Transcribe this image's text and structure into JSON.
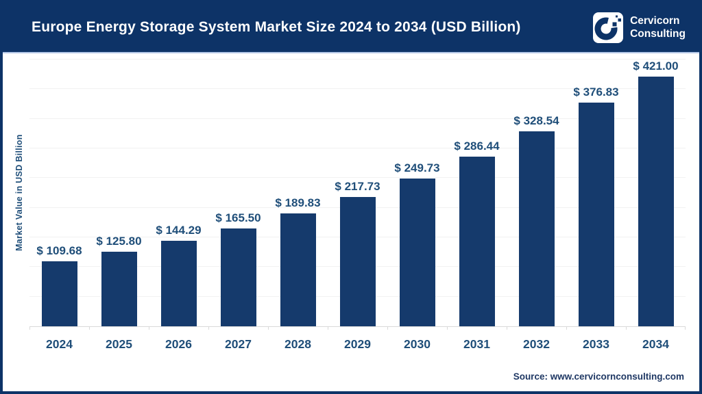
{
  "header": {
    "title": "Europe Energy Storage System Market Size 2024 to 2034 (USD Billion)",
    "brand_line1": "Cervicorn",
    "brand_line2": "Consulting"
  },
  "chart_data": {
    "type": "bar",
    "title": "Europe Energy Storage System Market Size 2024 to 2034 (USD Billion)",
    "categories": [
      "2024",
      "2025",
      "2026",
      "2027",
      "2028",
      "2029",
      "2030",
      "2031",
      "2032",
      "2033",
      "2034"
    ],
    "values": [
      109.68,
      125.8,
      144.29,
      165.5,
      189.83,
      217.73,
      249.73,
      286.44,
      328.54,
      376.83,
      421.0
    ],
    "value_labels": [
      "$ 109.68",
      "$ 125.80",
      "$ 144.29",
      "$ 165.50",
      "$ 189.83",
      "$ 217.73",
      "$ 249.73",
      "$ 286.44",
      "$ 328.54",
      "$ 376.83",
      "$ 421.00"
    ],
    "xlabel": "",
    "ylabel": "Market Value in USD Billion",
    "ylim": [
      0,
      450
    ],
    "grid_step": 50,
    "grid": true,
    "legend": false,
    "bar_color": "#153a6c",
    "value_label_color": "#1f4e79"
  },
  "footer": {
    "source": "Source: www.cervicornconsulting.com"
  },
  "colors": {
    "header_navy": "#0d3367",
    "border_navy": "#0d3367",
    "header_separator": "#b4c7e7",
    "gridline": "#f1f1f1",
    "axis_line": "#d9d9d9",
    "text_navy": "#1f4e79",
    "source_navy": "#1f3864",
    "white": "#ffffff"
  }
}
